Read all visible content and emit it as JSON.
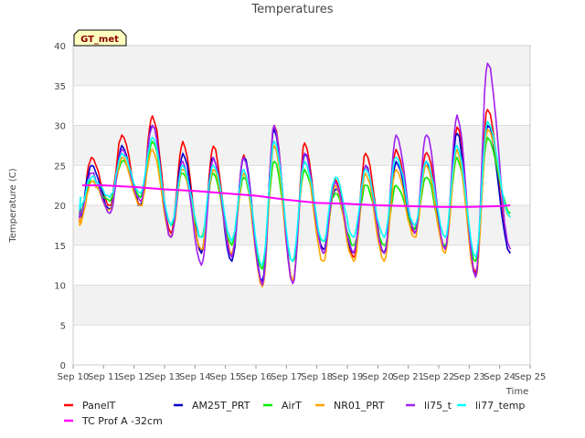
{
  "chart_data": {
    "type": "line",
    "title": "Temperatures",
    "xlabel": "Time",
    "ylabel": "Temperature (C)",
    "ylim": [
      0,
      40
    ],
    "xlim": [
      10,
      25
    ],
    "yticks": [
      0,
      5,
      10,
      15,
      20,
      25,
      30,
      35,
      40
    ],
    "xticks": [
      {
        "v": 10,
        "label": "Sep 10"
      },
      {
        "v": 11,
        "label": "Sep 11"
      },
      {
        "v": 12,
        "label": "Sep 12"
      },
      {
        "v": 13,
        "label": "Sep 13"
      },
      {
        "v": 14,
        "label": "Sep 14"
      },
      {
        "v": 15,
        "label": "Sep 15"
      },
      {
        "v": 16,
        "label": "Sep 16"
      },
      {
        "v": 17,
        "label": "Sep 17"
      },
      {
        "v": 18,
        "label": "Sep 18"
      },
      {
        "v": 19,
        "label": "Sep 19"
      },
      {
        "v": 20,
        "label": "Sep 20"
      },
      {
        "v": 21,
        "label": "Sep 21"
      },
      {
        "v": 22,
        "label": "Sep 22"
      },
      {
        "v": 23,
        "label": "Sep 23"
      },
      {
        "v": 24,
        "label": "Sep 24"
      },
      {
        "v": 25,
        "label": "Sep 25"
      }
    ],
    "grid": true,
    "background_bands": "alternating light gray",
    "legend_position": "bottom",
    "annotation": {
      "text": "GT_met",
      "position": "top-left"
    },
    "days": [
      10,
      11,
      12,
      13,
      14,
      15,
      16,
      17,
      18,
      19,
      20,
      21,
      22,
      23,
      24
    ],
    "series": [
      {
        "name": "PanelT",
        "color": "#ff0000",
        "x_start": 10.25,
        "x_end": 24.35,
        "start": 20.0,
        "end": 14.0,
        "lows": [
          18.0,
          20.0,
          20.0,
          16.5,
          14.0,
          13.5,
          10.0,
          10.5,
          14.0,
          13.5,
          14.0,
          16.5,
          14.5,
          11.5
        ],
        "highs": [
          26.0,
          28.8,
          31.2,
          28.0,
          27.4,
          26.3,
          30.0,
          27.8,
          23.3,
          26.5,
          27.0,
          26.6,
          29.8,
          32.0
        ]
      },
      {
        "name": "AM25T_PRT",
        "color": "#0000cc",
        "x_start": 10.25,
        "x_end": 24.35,
        "start": 20.0,
        "end": 14.0,
        "lows": [
          18.5,
          19.5,
          20.0,
          16.0,
          14.0,
          13.0,
          10.5,
          10.5,
          14.5,
          14.0,
          14.0,
          17.0,
          14.5,
          11.2
        ],
        "highs": [
          25.0,
          27.5,
          30.0,
          26.5,
          26.0,
          26.0,
          29.5,
          26.5,
          22.0,
          25.0,
          25.5,
          25.5,
          29.0,
          30.0
        ]
      },
      {
        "name": "AirT",
        "color": "#00ee00",
        "x_start": 10.25,
        "x_end": 24.35,
        "start": 21.0,
        "end": 19.0,
        "lows": [
          19.0,
          20.5,
          21.0,
          17.5,
          16.0,
          15.0,
          12.0,
          13.0,
          15.5,
          15.0,
          15.0,
          17.0,
          15.0,
          13.0
        ],
        "highs": [
          23.0,
          25.5,
          28.0,
          24.0,
          24.0,
          23.5,
          25.5,
          24.5,
          21.5,
          22.5,
          22.5,
          23.5,
          26.0,
          28.5
        ]
      },
      {
        "name": "NR01_PRT",
        "color": "#ffa500",
        "x_start": 10.25,
        "x_end": 24.35,
        "start": 19.0,
        "end": 18.5,
        "lows": [
          17.5,
          19.5,
          20.0,
          16.0,
          14.5,
          14.0,
          9.8,
          10.5,
          13.0,
          13.0,
          13.0,
          16.0,
          14.0,
          11.0
        ],
        "highs": [
          23.0,
          26.0,
          27.0,
          24.5,
          24.5,
          24.0,
          27.5,
          25.5,
          22.5,
          24.0,
          24.5,
          25.0,
          27.0,
          29.5
        ]
      },
      {
        "name": "li75_t",
        "color": "#a020f0",
        "x_start": 10.25,
        "x_end": 24.35,
        "start": 20.0,
        "end": 14.5,
        "lows": [
          18.5,
          19.0,
          20.5,
          16.0,
          12.5,
          13.5,
          10.0,
          10.2,
          14.0,
          14.0,
          14.0,
          16.5,
          14.5,
          11.0
        ],
        "highs": [
          24.0,
          27.0,
          30.0,
          25.5,
          26.0,
          26.0,
          30.0,
          26.5,
          23.0,
          25.0,
          28.8,
          28.8,
          31.3,
          37.8
        ]
      },
      {
        "name": "li77_temp",
        "color": "#00ffff",
        "x_start": 10.25,
        "x_end": 24.35,
        "start": 21.0,
        "end": 18.5,
        "lows": [
          19.5,
          21.0,
          21.5,
          17.5,
          16.0,
          15.5,
          12.5,
          13.0,
          15.5,
          16.0,
          16.0,
          17.5,
          16.0,
          13.5
        ],
        "highs": [
          23.5,
          26.5,
          28.5,
          25.0,
          25.0,
          24.5,
          28.0,
          25.5,
          23.5,
          24.5,
          26.0,
          25.5,
          27.5,
          30.5
        ]
      },
      {
        "name": "TC Prof A -32cm",
        "color": "#ff00ff",
        "x_start": 10.3,
        "x_end": 24.35,
        "points": [
          [
            10.3,
            22.5
          ],
          [
            11,
            22.5
          ],
          [
            12,
            22.3
          ],
          [
            13,
            22.0
          ],
          [
            14,
            21.8
          ],
          [
            15,
            21.5
          ],
          [
            16,
            21.2
          ],
          [
            17,
            20.7
          ],
          [
            18,
            20.3
          ],
          [
            19,
            20.2
          ],
          [
            20,
            20.0
          ],
          [
            21,
            19.9
          ],
          [
            22,
            19.8
          ],
          [
            23,
            19.8
          ],
          [
            24,
            19.9
          ],
          [
            24.35,
            20.0
          ]
        ]
      }
    ]
  }
}
